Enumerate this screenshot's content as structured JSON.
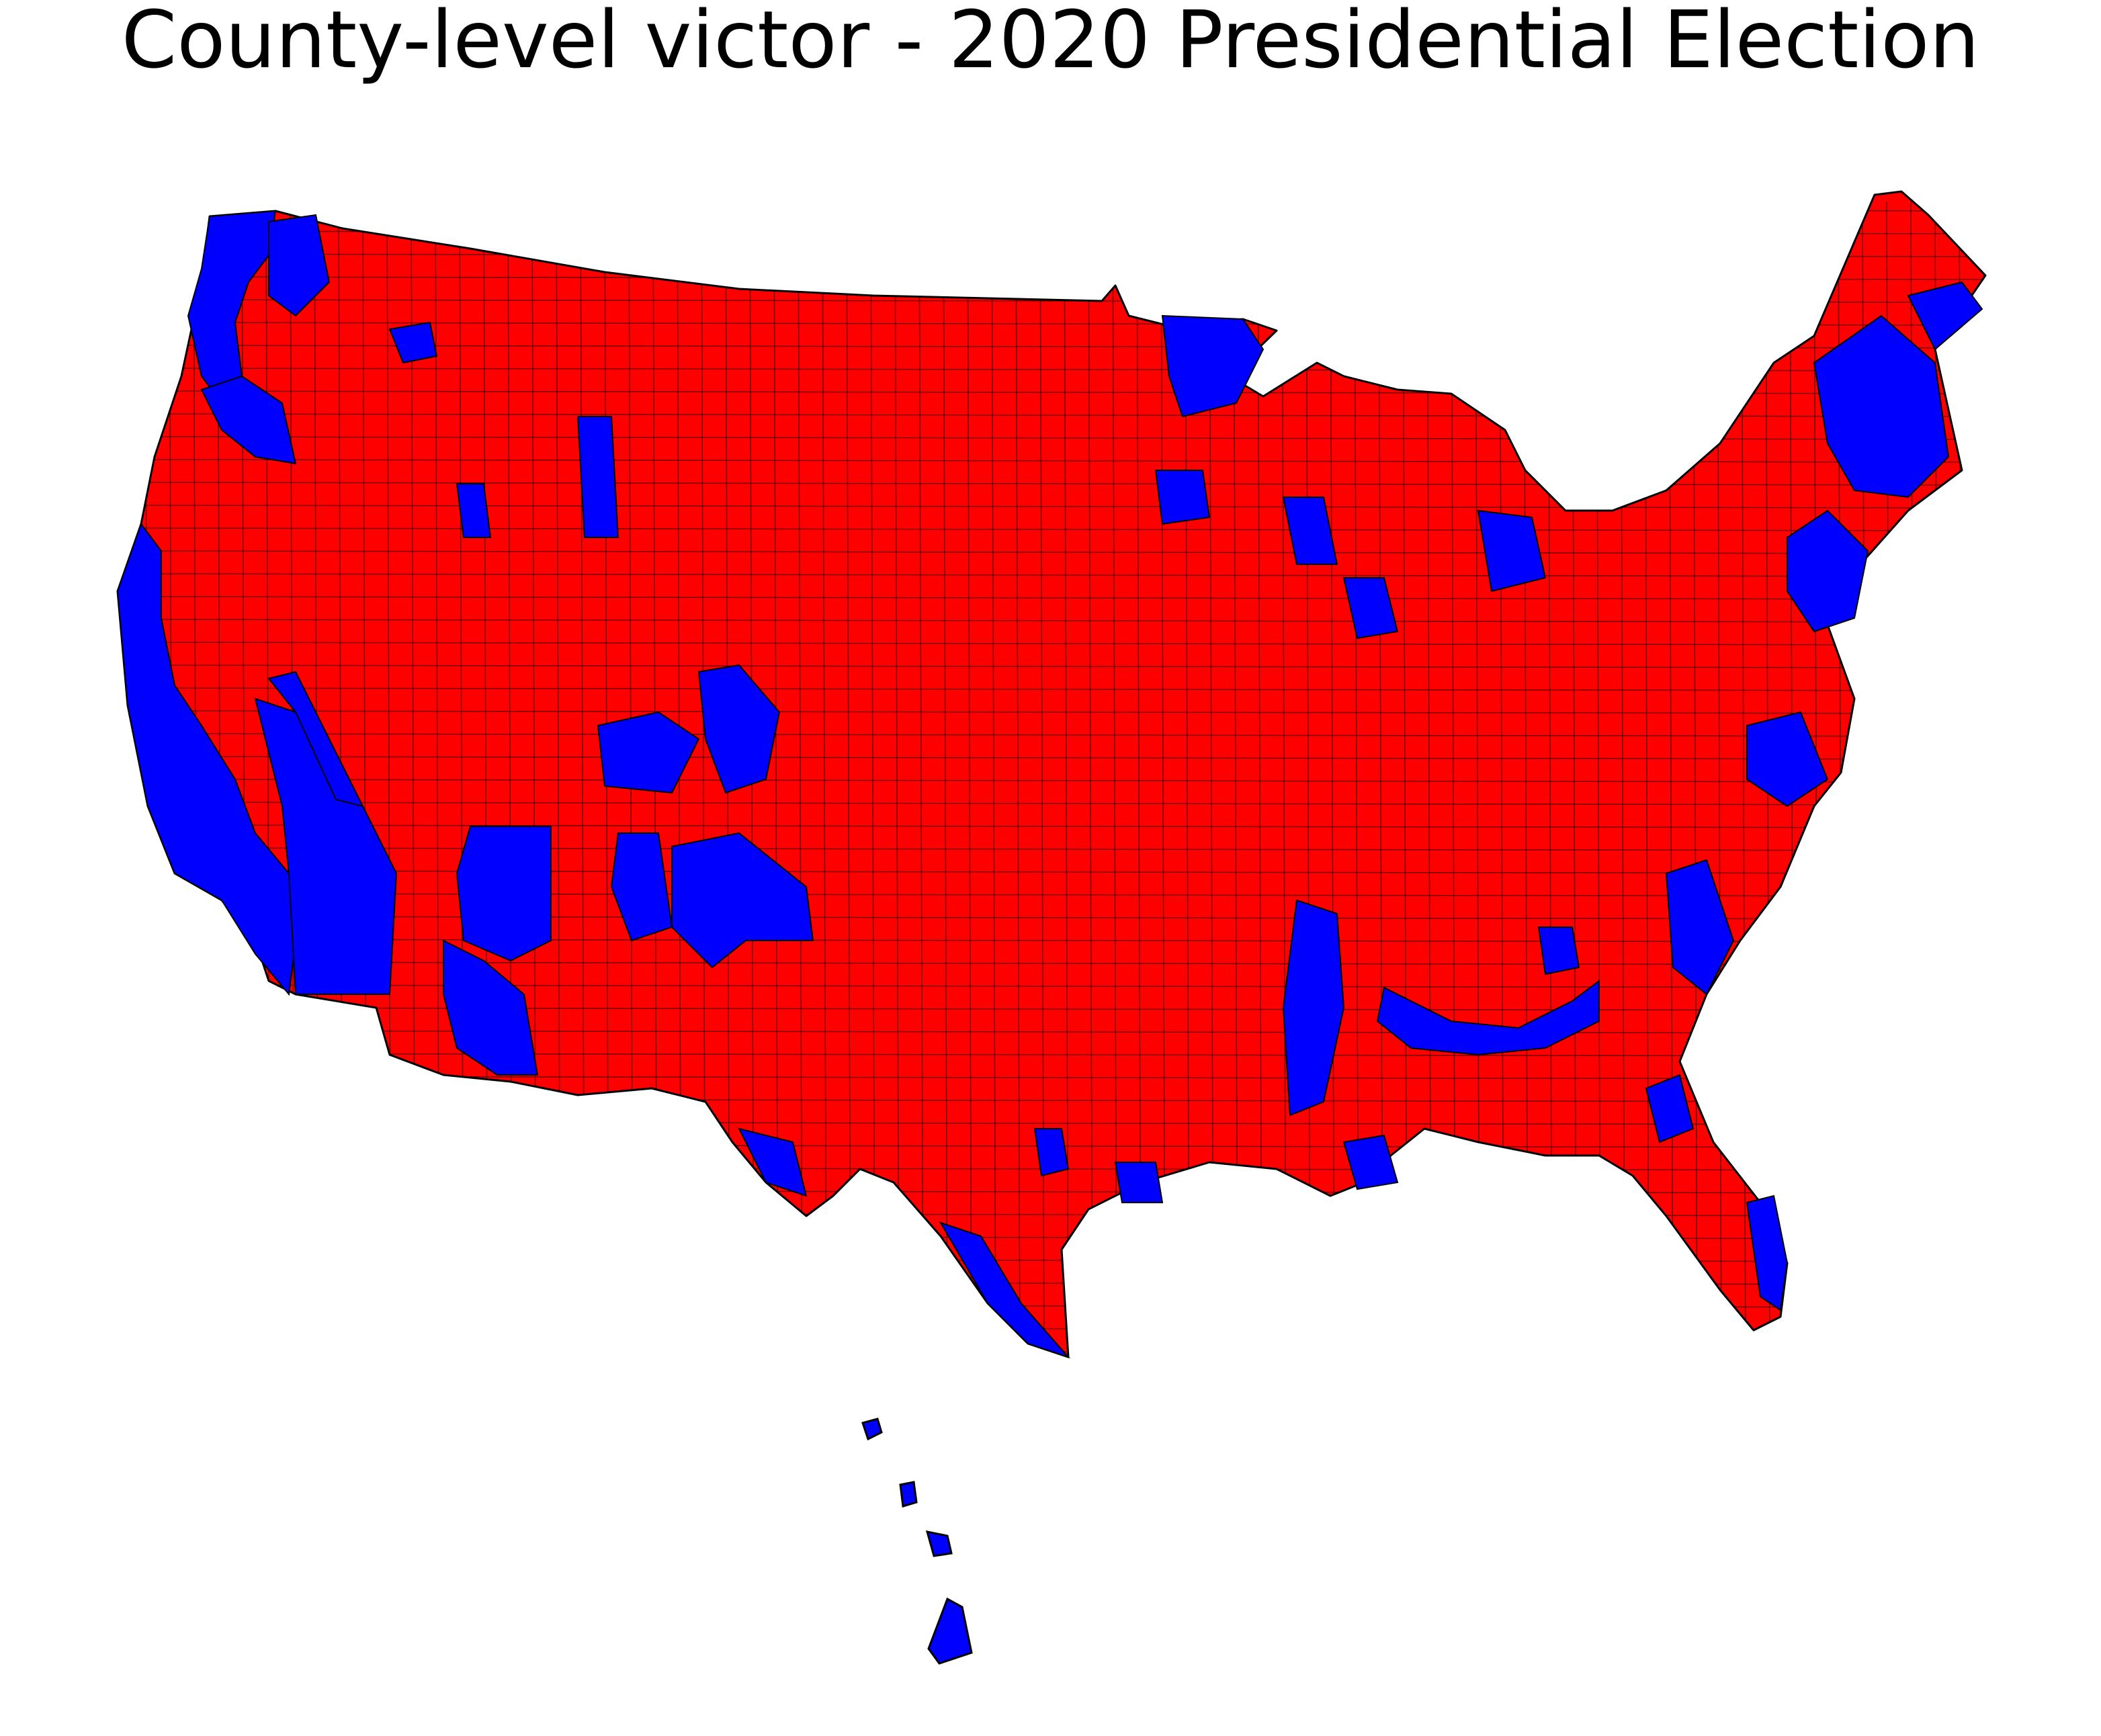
{
  "title": "County-level victor - 2020 Presidential Election",
  "map": {
    "type": "choropleth",
    "unit": "county",
    "colors": {
      "democratic": "#0000FF",
      "republican": "#FF0000",
      "border": "#000000",
      "background": "#FFFFFF"
    },
    "categories": [
      "republican",
      "democratic"
    ],
    "legend": "none",
    "regions_shown": [
      "contiguous-us",
      "hawaii"
    ]
  }
}
